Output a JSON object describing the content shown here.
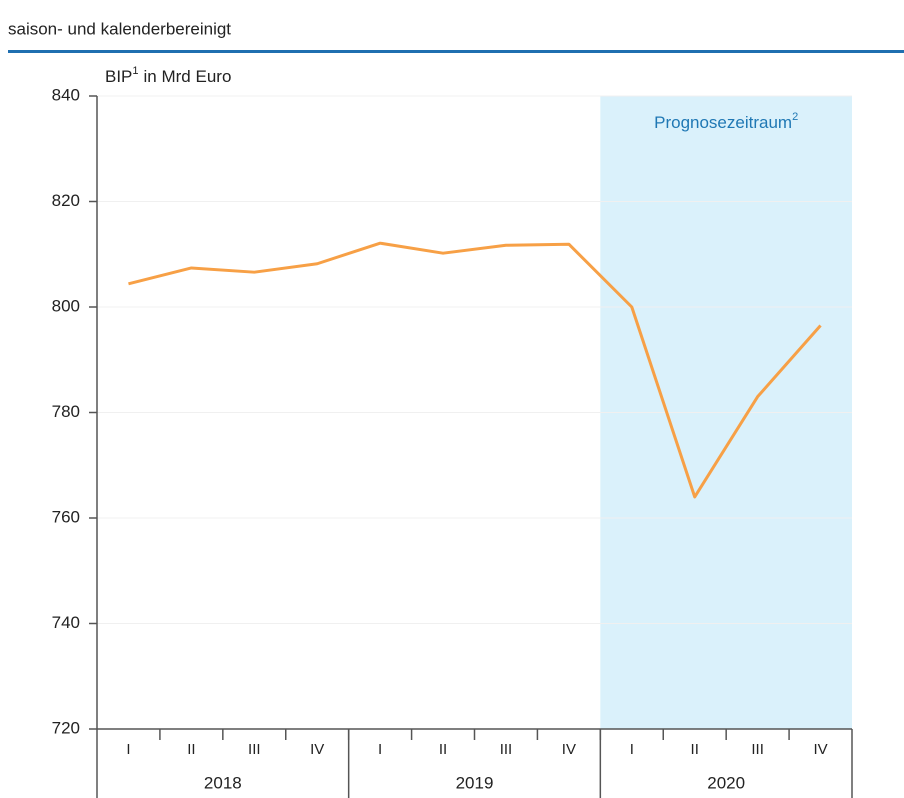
{
  "chart_data": {
    "type": "line",
    "subtitle": "saison- und kalenderbereinigt",
    "ylabel": {
      "text": "BIP",
      "footnote": "1",
      "rest": "in Mrd Euro"
    },
    "categories": [
      "I",
      "II",
      "III",
      "IV",
      "I",
      "II",
      "III",
      "IV",
      "I",
      "II",
      "III",
      "IV"
    ],
    "groups": [
      {
        "label": "2018",
        "size": 4
      },
      {
        "label": "2019",
        "size": 4
      },
      {
        "label": "2020",
        "size": 4
      }
    ],
    "highlight": {
      "group": 2,
      "label": "Prognosezeitraum",
      "footnote": "2",
      "color": "#daf1fb",
      "text_color": "#1f78b4"
    },
    "series": [
      {
        "name": "BIP",
        "color": "#f7a046",
        "values": [
          804.4,
          807.4,
          806.6,
          808.2,
          812.1,
          810.2,
          811.7,
          811.9,
          800,
          764,
          783,
          796.5
        ]
      }
    ],
    "ylim": [
      720,
      840
    ],
    "yticks": [
      720,
      740,
      760,
      780,
      800,
      820,
      840
    ],
    "grid": true
  }
}
